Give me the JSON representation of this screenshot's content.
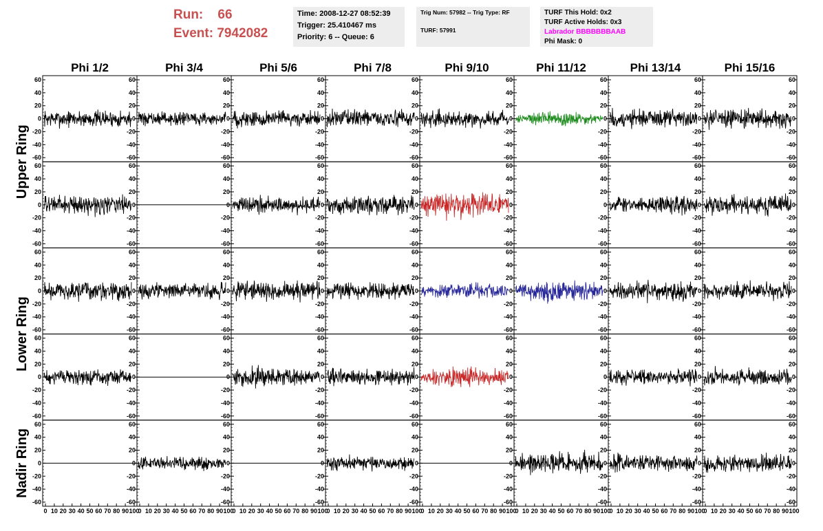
{
  "header": {
    "run_label": "Run:",
    "run_value": "66",
    "event_label": "Event:",
    "event_value": "7942082",
    "time": "Time: 2008-12-27 08:52:39",
    "trigger": "Trigger: 25.410467 ms",
    "priority": "Priority: 6 -- Queue: 6",
    "trig_num": "Trig Num: 57982 -- Trig Type: RF",
    "turf": "TURF: 57991",
    "turf_hold": "TURF This Hold: 0x2",
    "turf_active": "TURF Active Holds: 0x3",
    "labrador": "Labrador BBBBBBBAAB",
    "phi_mask": "Phi Mask: 0"
  },
  "colors": {
    "header_red": "#c85050",
    "info_bg": "#ededed",
    "labrador": "#ff00ff",
    "trace_default": "#000000",
    "trace_green": "#1a8a1a",
    "trace_red": "#c82828",
    "trace_blue": "#28289a"
  },
  "chart_data": {
    "type": "line",
    "columns": [
      "Phi 1/2",
      "Phi 3/4",
      "Phi 5/6",
      "Phi 7/8",
      "Phi 9/10",
      "Phi 11/12",
      "Phi 13/14",
      "Phi 15/16"
    ],
    "rows": [
      "Upper Ring",
      "Lower Ring",
      "Nadir Ring"
    ],
    "xlim": [
      0,
      100
    ],
    "ylim": [
      -60,
      60
    ],
    "x_ticks": [
      0,
      10,
      20,
      30,
      40,
      50,
      60,
      70,
      80,
      90,
      100
    ],
    "y_ticks": [
      60,
      40,
      20,
      0,
      -20,
      -40,
      -60
    ],
    "panels": [
      {
        "row": 0,
        "col": 0,
        "trace": "noise",
        "amp": 18,
        "color": "default"
      },
      {
        "row": 0,
        "col": 1,
        "trace": "noise",
        "amp": 14,
        "color": "default"
      },
      {
        "row": 0,
        "col": 2,
        "trace": "noise",
        "amp": 18,
        "color": "default"
      },
      {
        "row": 0,
        "col": 3,
        "trace": "noise",
        "amp": 18,
        "color": "default"
      },
      {
        "row": 0,
        "col": 4,
        "trace": "noise",
        "amp": 17,
        "color": "default"
      },
      {
        "row": 0,
        "col": 5,
        "trace": "noise",
        "amp": 16,
        "color": "green"
      },
      {
        "row": 0,
        "col": 6,
        "trace": "noise",
        "amp": 20,
        "color": "default"
      },
      {
        "row": 0,
        "col": 7,
        "trace": "noise",
        "amp": 20,
        "color": "default"
      },
      {
        "row": 1,
        "col": 0,
        "trace": "noise",
        "amp": 20,
        "color": "default"
      },
      {
        "row": 1,
        "col": 1,
        "trace": "flat",
        "amp": 0,
        "color": "default"
      },
      {
        "row": 1,
        "col": 2,
        "trace": "noise",
        "amp": 18,
        "color": "default"
      },
      {
        "row": 1,
        "col": 3,
        "trace": "noise",
        "amp": 20,
        "color": "default"
      },
      {
        "row": 1,
        "col": 4,
        "trace": "noise",
        "amp": 30,
        "color": "red"
      },
      {
        "row": 1,
        "col": 5,
        "trace": "blank",
        "amp": 0,
        "color": "default"
      },
      {
        "row": 1,
        "col": 6,
        "trace": "noise",
        "amp": 18,
        "color": "default"
      },
      {
        "row": 1,
        "col": 7,
        "trace": "noise",
        "amp": 20,
        "color": "default"
      },
      {
        "row": 2,
        "col": 0,
        "trace": "noise",
        "amp": 20,
        "color": "default"
      },
      {
        "row": 2,
        "col": 1,
        "trace": "noise",
        "amp": 16,
        "color": "default"
      },
      {
        "row": 2,
        "col": 2,
        "trace": "noise",
        "amp": 20,
        "color": "default"
      },
      {
        "row": 2,
        "col": 3,
        "trace": "noise",
        "amp": 18,
        "color": "default"
      },
      {
        "row": 2,
        "col": 4,
        "trace": "noise",
        "amp": 18,
        "color": "blue"
      },
      {
        "row": 2,
        "col": 5,
        "trace": "noise",
        "amp": 24,
        "color": "blue"
      },
      {
        "row": 2,
        "col": 6,
        "trace": "noise",
        "amp": 20,
        "color": "default"
      },
      {
        "row": 2,
        "col": 7,
        "trace": "noise",
        "amp": 18,
        "color": "default"
      },
      {
        "row": 3,
        "col": 0,
        "trace": "noise",
        "amp": 16,
        "color": "default"
      },
      {
        "row": 3,
        "col": 1,
        "trace": "flat",
        "amp": 0,
        "color": "default"
      },
      {
        "row": 3,
        "col": 2,
        "trace": "noise",
        "amp": 20,
        "color": "default"
      },
      {
        "row": 3,
        "col": 3,
        "trace": "noise",
        "amp": 18,
        "color": "default"
      },
      {
        "row": 3,
        "col": 4,
        "trace": "noise",
        "amp": 22,
        "color": "red"
      },
      {
        "row": 3,
        "col": 5,
        "trace": "blank",
        "amp": 0,
        "color": "default"
      },
      {
        "row": 3,
        "col": 6,
        "trace": "noise",
        "amp": 16,
        "color": "default"
      },
      {
        "row": 3,
        "col": 7,
        "trace": "noise",
        "amp": 18,
        "color": "default"
      },
      {
        "row": 4,
        "col": 0,
        "trace": "flat",
        "amp": 0,
        "color": "default"
      },
      {
        "row": 4,
        "col": 1,
        "trace": "noise",
        "amp": 14,
        "color": "default"
      },
      {
        "row": 4,
        "col": 2,
        "trace": "flat",
        "amp": 0,
        "color": "default"
      },
      {
        "row": 4,
        "col": 3,
        "trace": "noise",
        "amp": 16,
        "color": "default"
      },
      {
        "row": 4,
        "col": 4,
        "trace": "flat",
        "amp": 0,
        "color": "default"
      },
      {
        "row": 4,
        "col": 5,
        "trace": "noise",
        "amp": 22,
        "color": "default"
      },
      {
        "row": 4,
        "col": 6,
        "trace": "noise",
        "amp": 18,
        "color": "default"
      },
      {
        "row": 4,
        "col": 7,
        "trace": "noise",
        "amp": 18,
        "color": "default"
      }
    ]
  }
}
